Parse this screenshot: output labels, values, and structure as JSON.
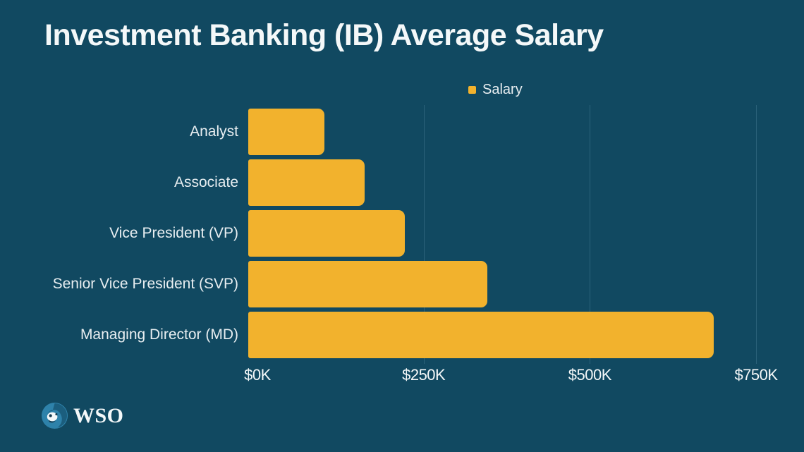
{
  "title": "Investment Banking (IB) Average Salary",
  "legend": {
    "label": "Salary"
  },
  "footer": {
    "wordmark": "WSO"
  },
  "colors": {
    "background": "#114961",
    "bar": "#f2b22d",
    "gridline": "#2b627a",
    "title_text": "#f4f8f9",
    "label_text": "#e8eef1"
  },
  "chart_data": {
    "type": "bar",
    "orientation": "horizontal",
    "title": "Investment Banking (IB) Average Salary",
    "legend_entries": [
      "Salary"
    ],
    "legend_position": "top-center",
    "categories": [
      "Analyst",
      "Associate",
      "Vice President (VP)",
      "Senior Vice President (SVP)",
      "Managing Director (MD)"
    ],
    "series": [
      {
        "name": "Salary",
        "values": [
          115000,
          175000,
          235000,
          360000,
          700000
        ]
      }
    ],
    "values_unit": "USD per year",
    "xlabel": "",
    "ylabel": "",
    "xlim": [
      0,
      750000
    ],
    "x_ticks": [
      {
        "label": "$0K",
        "value": 0
      },
      {
        "label": "$250K",
        "value": 250000
      },
      {
        "label": "$500K",
        "value": 500000
      },
      {
        "label": "$750K",
        "value": 750000
      }
    ],
    "grid": "vertical-only",
    "gridline_values": [
      250000,
      500000,
      750000
    ]
  }
}
